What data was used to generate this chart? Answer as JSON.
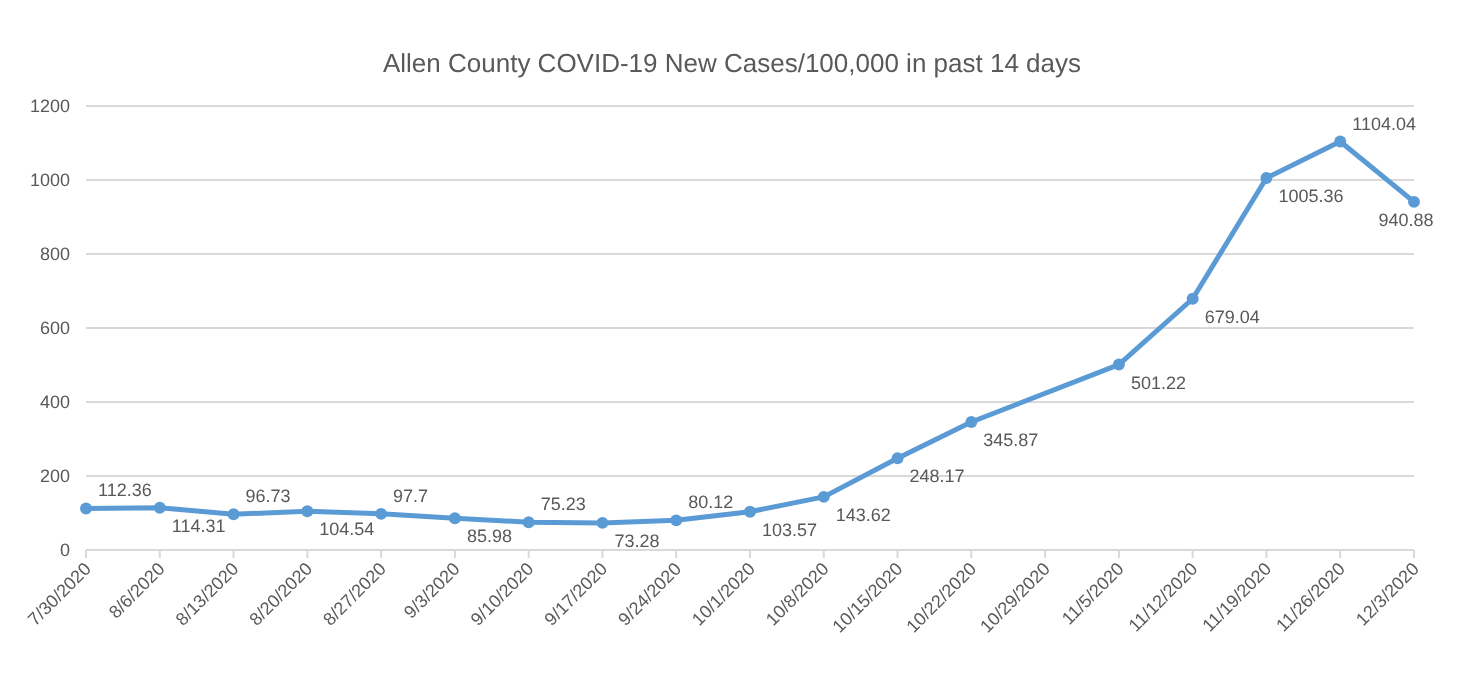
{
  "chart_data": {
    "type": "line",
    "title": "Allen County COVID-19 New Cases/100,000 in past 14 days",
    "x": [
      "2020-07-30",
      "2020-08-06",
      "2020-08-13",
      "2020-08-20",
      "2020-08-27",
      "2020-09-03",
      "2020-09-10",
      "2020-09-17",
      "2020-09-24",
      "2020-10-01",
      "2020-10-08",
      "2020-10-15",
      "2020-10-22",
      "2020-11-05",
      "2020-11-12",
      "2020-11-19",
      "2020-11-26",
      "2020-12-03"
    ],
    "series": [
      {
        "color": "#5b9bd5",
        "values": [
          112.36,
          114.31,
          96.73,
          104.54,
          97.7,
          85.98,
          75.23,
          73.28,
          80.12,
          103.57,
          143.62,
          248.17,
          345.87,
          501.22,
          679.04,
          1005.36,
          1104.04,
          940.88
        ]
      }
    ],
    "xlim": [
      "2020-07-30",
      "2020-12-03"
    ],
    "xticks": [
      {
        "value": "2020-07-30",
        "label": "7/30/2020"
      },
      {
        "value": "2020-08-06",
        "label": "8/6/2020"
      },
      {
        "value": "2020-08-13",
        "label": "8/13/2020"
      },
      {
        "value": "2020-08-20",
        "label": "8/20/2020"
      },
      {
        "value": "2020-08-27",
        "label": "8/27/2020"
      },
      {
        "value": "2020-09-03",
        "label": "9/3/2020"
      },
      {
        "value": "2020-09-10",
        "label": "9/10/2020"
      },
      {
        "value": "2020-09-17",
        "label": "9/17/2020"
      },
      {
        "value": "2020-09-24",
        "label": "9/24/2020"
      },
      {
        "value": "2020-10-01",
        "label": "10/1/2020"
      },
      {
        "value": "2020-10-08",
        "label": "10/8/2020"
      },
      {
        "value": "2020-10-15",
        "label": "10/15/2020"
      },
      {
        "value": "2020-10-22",
        "label": "10/22/2020"
      },
      {
        "value": "2020-10-29",
        "label": "10/29/2020"
      },
      {
        "value": "2020-11-05",
        "label": "11/5/2020"
      },
      {
        "value": "2020-11-12",
        "label": "11/12/2020"
      },
      {
        "value": "2020-11-19",
        "label": "11/19/2020"
      },
      {
        "value": "2020-11-26",
        "label": "11/26/2020"
      },
      {
        "value": "2020-12-03",
        "label": "12/3/2020"
      }
    ],
    "ylim": [
      0,
      1200
    ],
    "yticks": [
      0,
      200,
      400,
      600,
      800,
      1000,
      1200
    ],
    "grid": "y",
    "marker": "circle",
    "line_style": "solid",
    "data_labels": true
  }
}
